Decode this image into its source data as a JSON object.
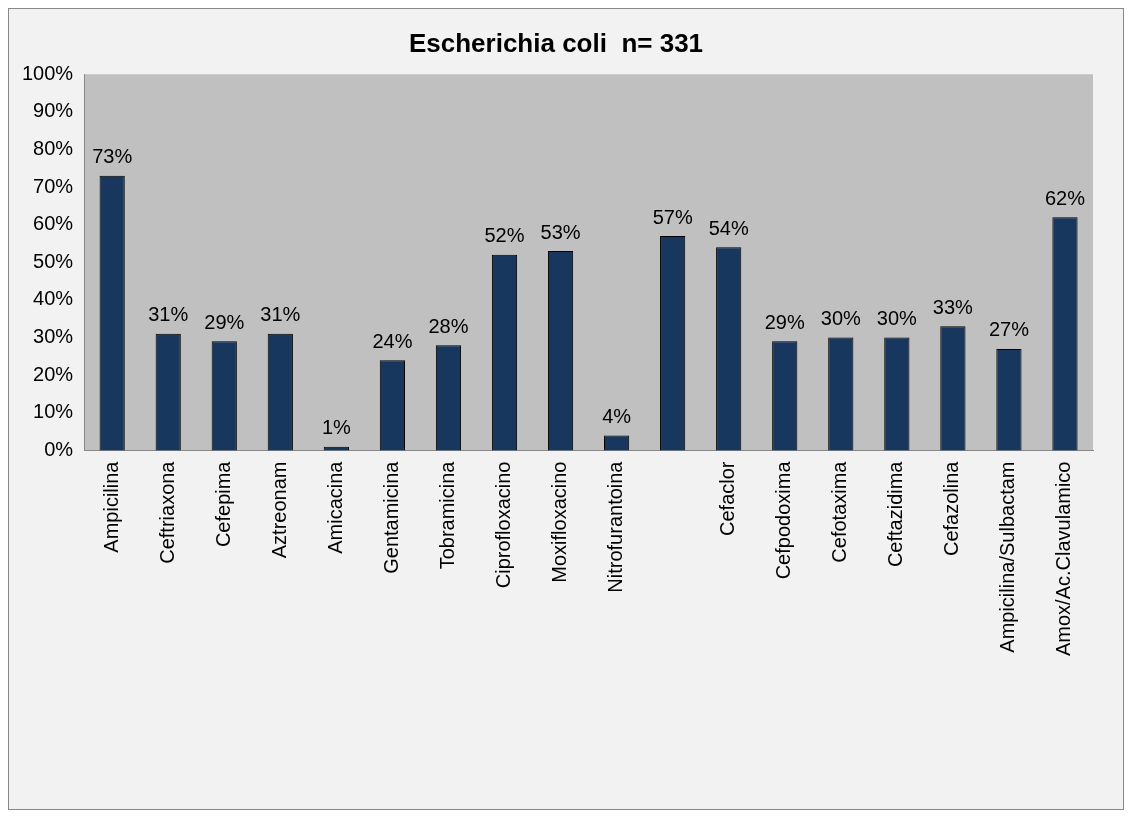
{
  "chart_data": {
    "type": "bar",
    "title": "Escherichia coli  n= 331",
    "categories": [
      "Ampicilina",
      "Ceftriaxona",
      "Cefepima",
      "Aztreonam",
      "Amicacina",
      "Gentamicina",
      "Tobramicina",
      "Ciprofloxacino",
      "Moxifloxacino",
      "Nitrofurantoina",
      null,
      "Cefaclor",
      "Cefpodoxima",
      "Cefotaxima",
      "Ceftazidima",
      "Cefazolina",
      "Ampicilina/Sulbactam",
      "Amox/Ac.Clavulamico"
    ],
    "values": [
      73,
      31,
      29,
      31,
      1,
      24,
      28,
      52,
      53,
      4,
      57,
      54,
      29,
      30,
      30,
      33,
      27,
      62
    ],
    "value_labels": [
      "73%",
      "31%",
      "29%",
      "31%",
      "1%",
      "24%",
      "28%",
      "52%",
      "53%",
      "4%",
      "57%",
      "54%",
      "29%",
      "30%",
      "30%",
      "33%",
      "27%",
      "62%"
    ],
    "color": "#17375e",
    "ylim": [
      0,
      100
    ],
    "yticks": [
      {
        "value": 0,
        "label": "0%"
      },
      {
        "value": 10,
        "label": "10%"
      },
      {
        "value": 20,
        "label": "20%"
      },
      {
        "value": 30,
        "label": "30%"
      },
      {
        "value": 40,
        "label": "40%"
      },
      {
        "value": 50,
        "label": "50%"
      },
      {
        "value": 60,
        "label": "60%"
      },
      {
        "value": 70,
        "label": "70%"
      },
      {
        "value": 80,
        "label": "80%"
      },
      {
        "value": 90,
        "label": "90%"
      },
      {
        "value": 100,
        "label": "100%"
      }
    ],
    "grid": false,
    "legend": false
  }
}
